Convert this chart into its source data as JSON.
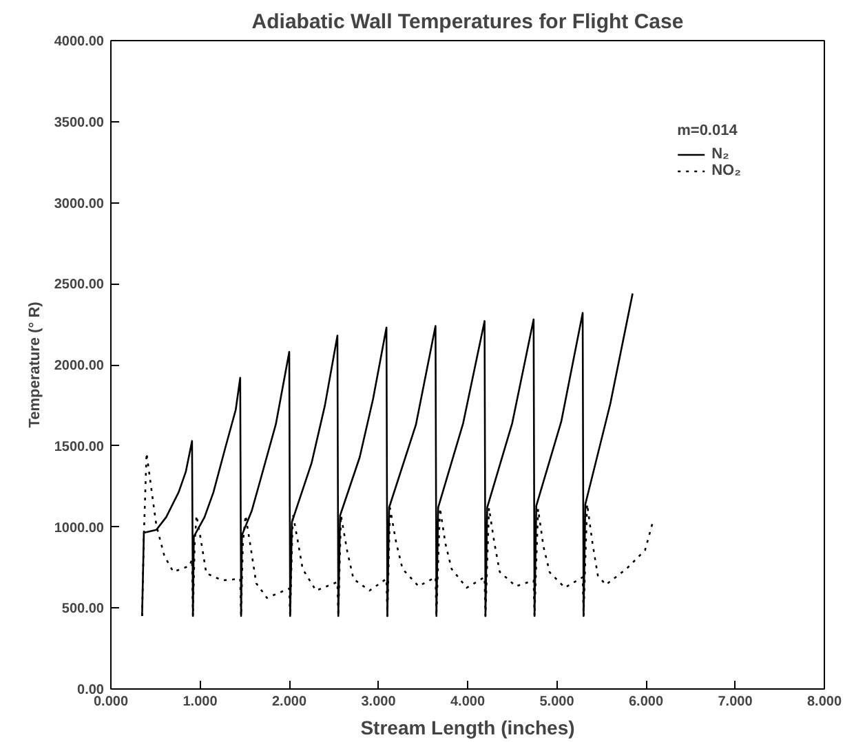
{
  "chart_data": {
    "type": "line",
    "title": "Adiabatic Wall Temperatures for Flight Case",
    "xlabel": "Stream Length (inches)",
    "ylabel": "Temperature (° R)",
    "legend_title": "m=0.014",
    "legend": "top right",
    "grid": false,
    "marker": "none",
    "xlim": [
      0,
      8
    ],
    "ylim": [
      0,
      4000
    ],
    "xticks": [
      {
        "value": 0,
        "label": "0.000"
      },
      {
        "value": 1,
        "label": "1.000"
      },
      {
        "value": 2,
        "label": "2.000"
      },
      {
        "value": 3,
        "label": "3.000"
      },
      {
        "value": 4,
        "label": "4.000"
      },
      {
        "value": 5,
        "label": "5.000"
      },
      {
        "value": 6,
        "label": "6.000"
      },
      {
        "value": 7,
        "label": "7.000"
      },
      {
        "value": 8,
        "label": "8.000"
      }
    ],
    "yticks": [
      {
        "value": 0,
        "label": "0.00"
      },
      {
        "value": 500,
        "label": "500.00"
      },
      {
        "value": 1000,
        "label": "1000.00"
      },
      {
        "value": 1500,
        "label": "1500.00"
      },
      {
        "value": 2000,
        "label": "2000.00"
      },
      {
        "value": 2500,
        "label": "2500.00"
      },
      {
        "value": 3000,
        "label": "3000.00"
      },
      {
        "value": 3500,
        "label": "3500.00"
      },
      {
        "value": 4000,
        "label": "4000.00"
      }
    ],
    "series": [
      {
        "name": "N₂",
        "color": "#000000",
        "line_style": "solid",
        "x": [
          0.35,
          0.37,
          0.51,
          0.62,
          0.76,
          0.84,
          0.91,
          0.92,
          0.93,
          1.05,
          1.15,
          1.28,
          1.4,
          1.45,
          1.46,
          1.47,
          1.58,
          1.67,
          1.85,
          2.0,
          2.01,
          2.03,
          2.25,
          2.4,
          2.54,
          2.55,
          2.57,
          2.79,
          2.94,
          3.09,
          3.1,
          3.12,
          3.42,
          3.64,
          3.65,
          3.67,
          3.95,
          4.19,
          4.2,
          4.22,
          4.5,
          4.74,
          4.75,
          4.77,
          5.05,
          5.29,
          5.3,
          5.32,
          5.6,
          5.85
        ],
        "values": [
          450,
          964,
          982,
          1060,
          1214,
          1340,
          1530,
          450,
          940,
          1060,
          1214,
          1482,
          1723,
          1920,
          450,
          950,
          1100,
          1277,
          1634,
          2080,
          450,
          1030,
          1393,
          1750,
          2180,
          450,
          1070,
          1430,
          1790,
          2230,
          450,
          1120,
          1630,
          2240,
          450,
          1120,
          1640,
          2270,
          450,
          1120,
          1640,
          2280,
          450,
          1130,
          1650,
          2320,
          450,
          1140,
          1760,
          2440
        ]
      },
      {
        "name": "NO₂",
        "color": "#000000",
        "line_style": "dotted",
        "x": [
          0.35,
          0.37,
          0.4,
          0.45,
          0.51,
          0.6,
          0.7,
          0.88,
          0.91,
          0.92,
          0.94,
          0.96,
          1.0,
          1.07,
          1.25,
          1.45,
          1.46,
          1.48,
          1.51,
          1.56,
          1.63,
          1.75,
          2.0,
          2.01,
          2.04,
          2.1,
          2.15,
          2.3,
          2.54,
          2.55,
          2.58,
          2.65,
          2.72,
          2.9,
          3.09,
          3.1,
          3.13,
          3.2,
          3.27,
          3.45,
          3.64,
          3.65,
          3.69,
          3.75,
          3.82,
          3.99,
          4.19,
          4.2,
          4.24,
          4.3,
          4.36,
          4.54,
          4.74,
          4.75,
          4.79,
          4.85,
          4.92,
          5.09,
          5.29,
          5.3,
          5.34,
          5.4,
          5.46,
          5.55,
          5.78,
          5.99,
          6.07
        ],
        "values": [
          450,
          950,
          1455,
          1250,
          1009,
          820,
          723,
          759,
          800,
          450,
          900,
          1071,
          950,
          714,
          670,
          680,
          450,
          900,
          1071,
          900,
          652,
          562,
          620,
          450,
          1080,
          900,
          741,
          607,
          660,
          450,
          1071,
          850,
          679,
          607,
          680,
          450,
          1116,
          900,
          741,
          634,
          690,
          450,
          1116,
          900,
          741,
          625,
          690,
          450,
          1116,
          900,
          723,
          634,
          670,
          450,
          1110,
          880,
          720,
          625,
          690,
          450,
          1140,
          900,
          700,
          643,
          741,
          857,
          1018
        ]
      }
    ]
  }
}
